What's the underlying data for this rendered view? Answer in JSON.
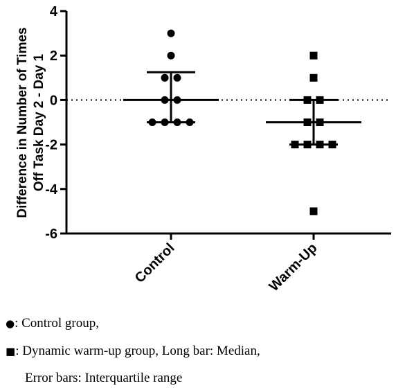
{
  "chart_data": {
    "type": "scatter",
    "categories": [
      "Control",
      "Warm-Up"
    ],
    "ylabel_lines": [
      "Difference in Number of Times",
      "Off Task Day 2 - Day 1"
    ],
    "ylim": [
      -6,
      4
    ],
    "yticks": [
      4,
      2,
      0,
      -2,
      -4,
      -6
    ],
    "reference_line": 0,
    "series": [
      {
        "name": "Control",
        "marker": "circle",
        "values": [
          3,
          2,
          1,
          1,
          0,
          0,
          -1,
          -1,
          -1,
          -1
        ],
        "median": 0,
        "q1": -1,
        "q3": 1.25
      },
      {
        "name": "Warm-Up",
        "marker": "square",
        "values": [
          2,
          1,
          0,
          0,
          -1,
          -1,
          -2,
          -2,
          -2,
          -2,
          -5
        ],
        "median": -1,
        "q1": -2,
        "q3": 0
      }
    ],
    "grid": false,
    "colors": {
      "marks": "#000000",
      "background": "#ffffff"
    }
  },
  "legend": {
    "line1_symbol": "●",
    "line1_text": ": Control group,",
    "line2_symbol": "■",
    "line2_text": ": Dynamic warm-up group, Long bar: Median,",
    "line3_text": "Error bars: Interquartile range"
  }
}
